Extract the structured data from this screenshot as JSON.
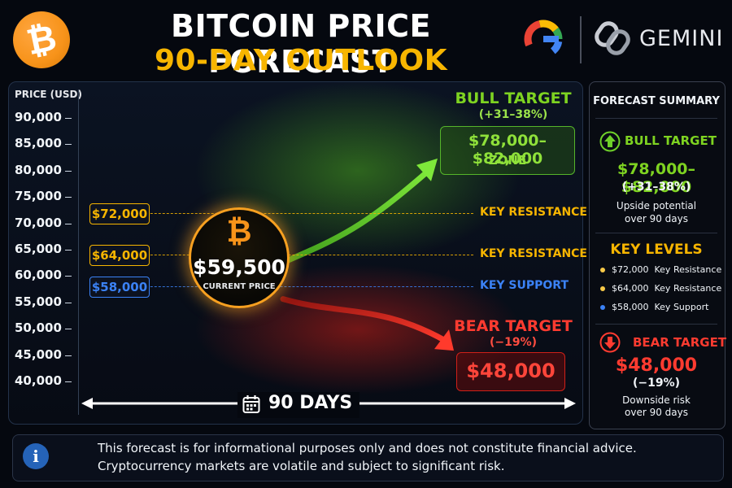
{
  "header": {
    "title_line1": "BITCOIN PRICE FORECAST",
    "title_line2": "90-DAY OUTLOOK",
    "btc_symbol": "₿",
    "brand_google": "G",
    "brand_gemini": "GEMINI",
    "icons": [
      "bitcoin-logo-icon",
      "google-logo-icon",
      "gemini-logo-icon"
    ]
  },
  "chart_data": {
    "type": "line",
    "ylabel": "PRICE (USD)",
    "ylim": [
      40000,
      90000
    ],
    "yticks": [
      "90,000",
      "85,000",
      "80,000",
      "75,000",
      "70,000",
      "65,000",
      "60,000",
      "55,000",
      "50,000",
      "45,000",
      "40,000"
    ],
    "ytick_values": [
      90000,
      85000,
      80000,
      75000,
      70000,
      65000,
      60000,
      55000,
      50000,
      45000,
      40000
    ],
    "x_span_label": "90 DAYS",
    "current": {
      "value": 59500,
      "price_label": "$59,500",
      "label": "CURRENT PRICE"
    },
    "levels": [
      {
        "value": 72000,
        "label": "$72,000",
        "name": "KEY RESISTANCE",
        "color": "#f7b500"
      },
      {
        "value": 64000,
        "label": "$64,000",
        "name": "KEY RESISTANCE",
        "color": "#f7b500"
      },
      {
        "value": 58000,
        "label": "$58,000",
        "name": "KEY SUPPORT",
        "color": "#3b82f6"
      }
    ],
    "bull": {
      "title": "BULL TARGET",
      "pct": "(+31–38%)",
      "range": "$78,000–$82,000",
      "zone": "ZONE",
      "target_value": 82000,
      "color": "#6fd02a"
    },
    "bear": {
      "title": "BEAR TARGET",
      "pct": "(−19%)",
      "value_label": "$48,000",
      "target_value": 48000,
      "color": "#ff3b30"
    }
  },
  "summary": {
    "title": "FORECAST SUMMARY",
    "bull_title": "BULL TARGET",
    "bull_range": "$78,000–$82,000",
    "bull_pct": "(+31–38%)",
    "bull_desc1": "Upside potential",
    "bull_desc2": "over 90 days",
    "key_levels_title": "KEY LEVELS",
    "key_levels": [
      {
        "price": "$72,000",
        "name": "Key Resistance",
        "color": "#f7c948"
      },
      {
        "price": "$64,000",
        "name": "Key Resistance",
        "color": "#f7c948"
      },
      {
        "price": "$58,000",
        "name": "Key Support",
        "color": "#3b82f6"
      }
    ],
    "bear_title": "BEAR TARGET",
    "bear_value": "$48,000",
    "bear_pct": "(−19%)",
    "bear_desc1": "Downside risk",
    "bear_desc2": "over 90 days"
  },
  "disclaimer": {
    "line1": "This forecast is for informational purposes only and does not constitute financial advice.",
    "line2": "Cryptocurrency markets are volatile and subject to significant risk.",
    "icon": "info-icon"
  }
}
